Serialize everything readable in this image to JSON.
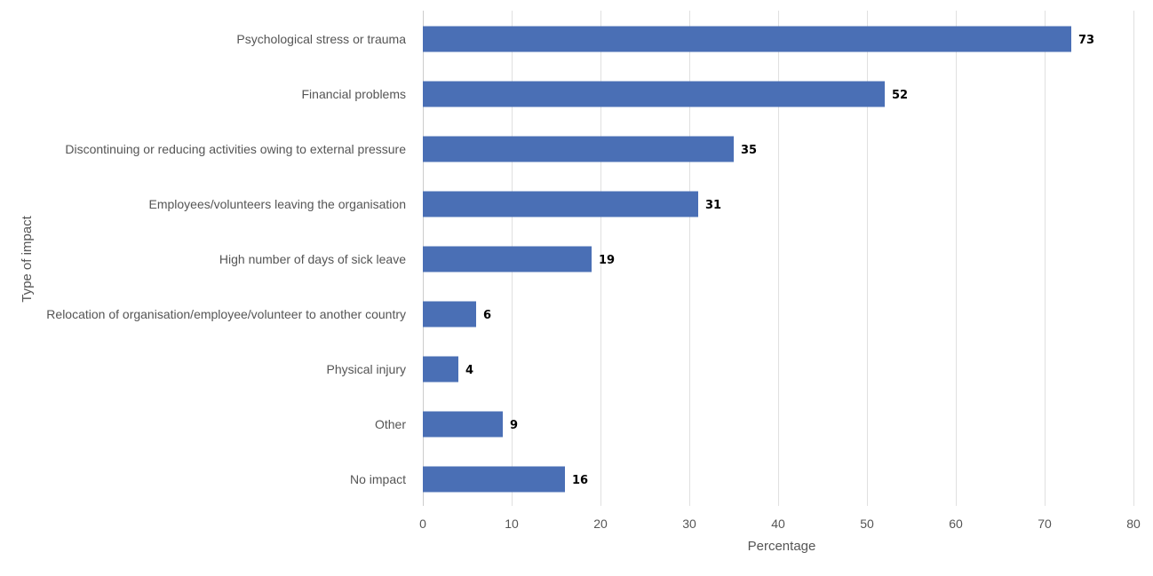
{
  "chart_data": {
    "type": "bar",
    "orientation": "horizontal",
    "title": "",
    "xlabel": "Percentage",
    "ylabel": "Type of impact",
    "xlim": [
      0,
      80
    ],
    "x_ticks": [
      0,
      10,
      20,
      30,
      40,
      50,
      60,
      70,
      80
    ],
    "grid": true,
    "legend": "none",
    "bar_color": "#4a6fb5",
    "categories": [
      "Psychological stress or trauma",
      "Financial problems",
      "Discontinuing or reducing activities owing to external pressure",
      "Employees/volunteers leaving the organisation",
      "High number of days of sick leave",
      "Relocation of organisation/employee/volunteer to another country",
      "Physical injury",
      "Other",
      "No impact"
    ],
    "values": [
      73,
      52,
      35,
      31,
      19,
      6,
      4,
      9,
      16
    ]
  }
}
